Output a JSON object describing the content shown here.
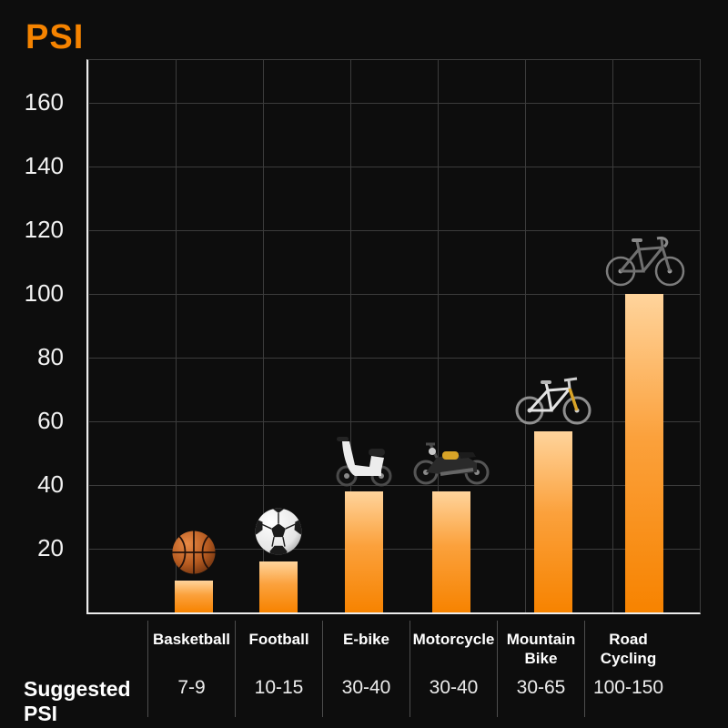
{
  "chart_data": {
    "type": "bar",
    "title": "PSI",
    "categories": [
      "Basketball",
      "Football",
      "E-bike",
      "Motorcycle",
      "Mountain Bike",
      "Road Cycling"
    ],
    "values": [
      10,
      16,
      38,
      38,
      57,
      100
    ],
    "suggested_psi": [
      "7-9",
      "10-15",
      "30-40",
      "30-40",
      "30-65",
      "100-150"
    ],
    "y_tick_labels": [
      "160",
      "140",
      "120",
      "100",
      "80",
      "60",
      "40",
      "20"
    ],
    "ylabel": "PSI",
    "ylim": [
      0,
      170
    ],
    "grid": true,
    "background_color": "#0d0d0d",
    "accent_color": "#f58300",
    "bar_gradient": [
      "#ffd49c",
      "#f78300"
    ],
    "gridline_color": "#3c3c3c",
    "icons": [
      "basketball-icon",
      "football-icon",
      "e-bike-icon",
      "motorcycle-icon",
      "mountain-bike-icon",
      "road-bike-icon"
    ]
  },
  "footer": {
    "row_label": "Suggested PSI"
  }
}
